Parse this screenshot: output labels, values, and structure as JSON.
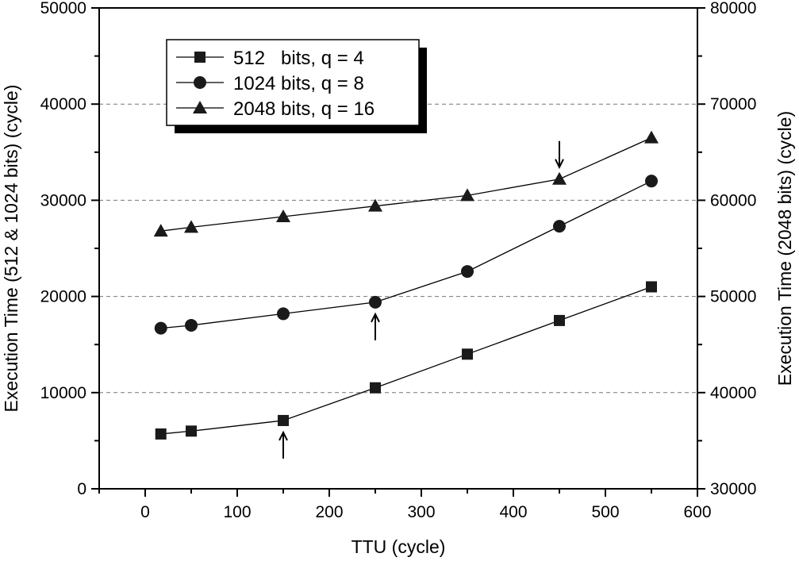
{
  "chart_data": {
    "type": "line",
    "title": "",
    "xlabel": "TTU (cycle)",
    "ylabel_left": "Execution Time (512 & 1024 bits) (cycle)",
    "ylabel_right": "Execution Time (2048 bits) (cycle)",
    "xlim": [
      -50,
      600
    ],
    "ylim_left": [
      0,
      50000
    ],
    "ylim_right": [
      30000,
      80000
    ],
    "x_ticks": [
      "0",
      "100",
      "200",
      "300",
      "400",
      "500",
      "600"
    ],
    "y_left_ticks": [
      "0",
      "10000",
      "20000",
      "30000",
      "40000",
      "50000"
    ],
    "y_right_ticks": [
      "30000",
      "40000",
      "50000",
      "60000",
      "70000",
      "80000"
    ],
    "grid": "horizontal dashed at major left ticks",
    "legend_position": "top-left",
    "series": [
      {
        "name": "512   bits, q = 4",
        "axis": "left",
        "marker": "square",
        "x": [
          17,
          50,
          150,
          250,
          350,
          450,
          550
        ],
        "y": [
          5700,
          6000,
          7100,
          10500,
          14000,
          17500,
          21000
        ]
      },
      {
        "name": "1024 bits, q = 8",
        "axis": "left",
        "marker": "circle",
        "x": [
          17,
          50,
          150,
          250,
          350,
          450,
          550
        ],
        "y": [
          16700,
          17000,
          18200,
          19400,
          22600,
          27300,
          32000
        ]
      },
      {
        "name": "2048 bits, q = 16",
        "axis": "right",
        "marker": "triangle",
        "x": [
          17,
          50,
          150,
          250,
          350,
          450,
          550
        ],
        "y": [
          56800,
          57200,
          58300,
          59400,
          60500,
          62200,
          66500
        ]
      }
    ],
    "annotations": [
      {
        "type": "arrow-up",
        "series": 0,
        "x": 150
      },
      {
        "type": "arrow-up",
        "series": 1,
        "x": 250
      },
      {
        "type": "arrow-down",
        "series": 2,
        "x": 450
      }
    ]
  }
}
